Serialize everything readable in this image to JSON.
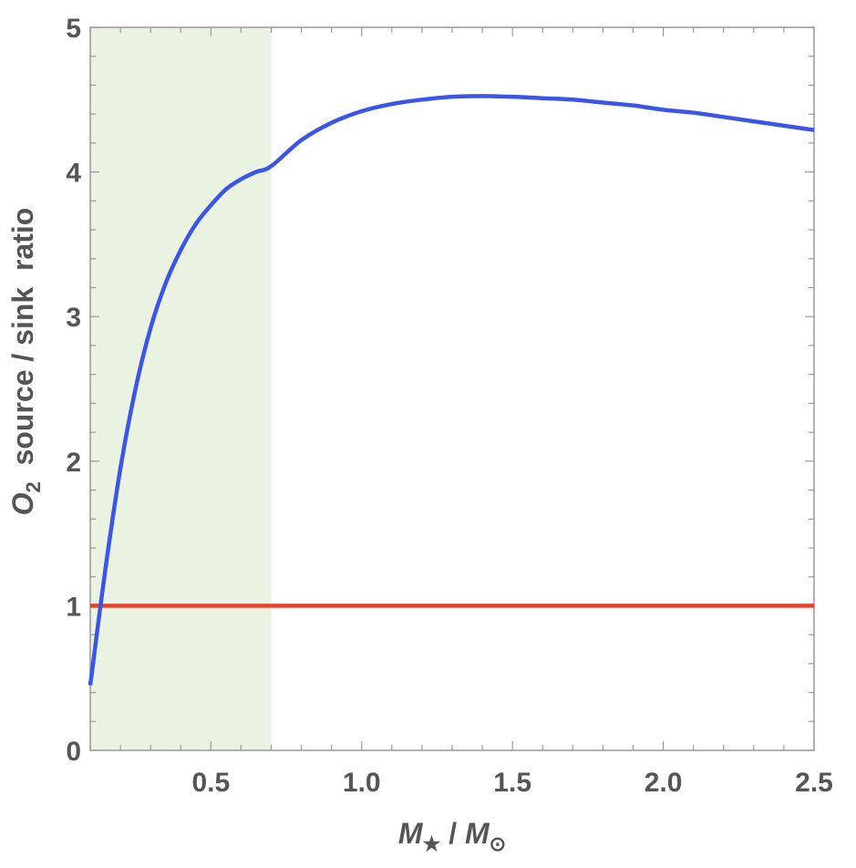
{
  "chart_data": {
    "type": "line",
    "xlabel": {
      "main": "M",
      "main_sub": "★",
      "separator": " / ",
      "denom": "M",
      "denom_sub": "⊙"
    },
    "ylabel": {
      "prefix": "O",
      "prefix_sub": "2",
      "rest": "  source / sink  ratio"
    },
    "xlim": [
      0.1,
      2.5
    ],
    "ylim": [
      0,
      5
    ],
    "x_ticks": [
      0.5,
      1.0,
      1.5,
      2.0,
      2.5
    ],
    "x_tick_labels": [
      "0.5",
      "1.0",
      "1.5",
      "2.0",
      "2.5"
    ],
    "y_ticks": [
      0,
      1,
      2,
      3,
      4,
      5
    ],
    "y_tick_labels": [
      "0",
      "1",
      "2",
      "3",
      "4",
      "5"
    ],
    "shaded_region": {
      "x_range": [
        0.1,
        0.7
      ],
      "color": "#eaf3e1"
    },
    "series": [
      {
        "color": "#3a55e8",
        "x": [
          0.1,
          0.15,
          0.2,
          0.25,
          0.3,
          0.35,
          0.4,
          0.45,
          0.5,
          0.55,
          0.6,
          0.65,
          0.7,
          0.8,
          0.9,
          1.0,
          1.1,
          1.2,
          1.3,
          1.4,
          1.5,
          1.6,
          1.7,
          1.8,
          1.9,
          2.0,
          2.1,
          2.2,
          2.3,
          2.4,
          2.5
        ],
        "y": [
          0.45,
          1.25,
          1.95,
          2.5,
          2.92,
          3.23,
          3.46,
          3.64,
          3.77,
          3.88,
          3.95,
          4.0,
          4.04,
          4.22,
          4.34,
          4.42,
          4.47,
          4.5,
          4.52,
          4.525,
          4.52,
          4.51,
          4.5,
          4.48,
          4.46,
          4.43,
          4.41,
          4.38,
          4.35,
          4.32,
          4.29
        ]
      },
      {
        "color": "#e8422b",
        "x": [
          0.1,
          2.5
        ],
        "y": [
          1,
          1
        ]
      }
    ]
  }
}
